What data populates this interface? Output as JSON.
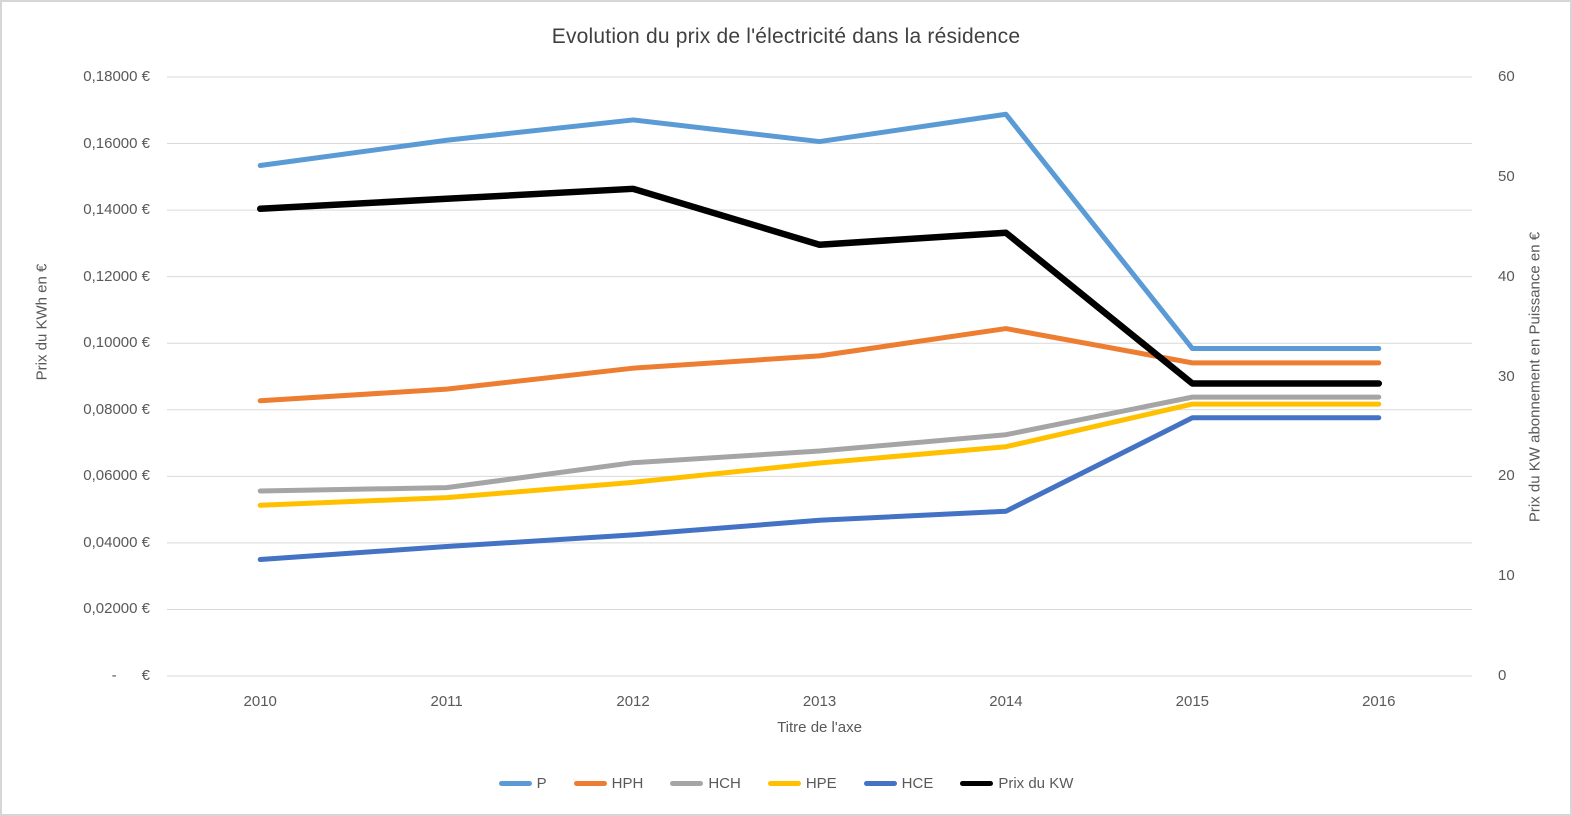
{
  "window": {
    "background": "#ffffff",
    "border_color": "#d6d6d6",
    "gridline_color": "#d9d9d9",
    "text_color": "#595959"
  },
  "chart_data": {
    "type": "line",
    "title": "Evolution du prix de l'électricité dans la résidence",
    "grid": true,
    "legend_position": "bottom",
    "x_axis": {
      "title": "Titre de l'axe",
      "categories": [
        "2010",
        "2011",
        "2012",
        "2013",
        "2014",
        "2015",
        "2016"
      ]
    },
    "left_axis": {
      "title": "Prix du KWh en €",
      "min": 0,
      "max": 0.18,
      "ticks": [
        {
          "value": 0.18,
          "label": "0,18000 €"
        },
        {
          "value": 0.16,
          "label": "0,16000 €"
        },
        {
          "value": 0.14,
          "label": "0,14000 €"
        },
        {
          "value": 0.12,
          "label": "0,12000 €"
        },
        {
          "value": 0.1,
          "label": "0,10000 €"
        },
        {
          "value": 0.08,
          "label": "0,08000 €"
        },
        {
          "value": 0.06,
          "label": "0,06000 €"
        },
        {
          "value": 0.04,
          "label": "0,04000 €"
        },
        {
          "value": 0.02,
          "label": "0,02000 €"
        },
        {
          "value": 0.0,
          "label": "-      €"
        }
      ]
    },
    "right_axis": {
      "title": "Prix du KW abonnement en Puissance en €",
      "min": 0,
      "max": 60,
      "ticks": [
        {
          "value": 60,
          "label": "60"
        },
        {
          "value": 50,
          "label": "50"
        },
        {
          "value": 40,
          "label": "40"
        },
        {
          "value": 30,
          "label": "30"
        },
        {
          "value": 20,
          "label": "20"
        },
        {
          "value": 10,
          "label": "10"
        },
        {
          "value": 0,
          "label": "0"
        }
      ]
    },
    "series": [
      {
        "name": "P",
        "axis": "left",
        "color": "#5B9BD5",
        "line_width": 5,
        "values": [
          0.1534,
          0.161,
          0.1671,
          0.1606,
          0.1688,
          0.0984,
          0.0984
        ]
      },
      {
        "name": "HPH",
        "axis": "left",
        "color": "#ED7D31",
        "line_width": 5,
        "values": [
          0.0827,
          0.0862,
          0.0925,
          0.0962,
          0.1044,
          0.0941,
          0.0941
        ]
      },
      {
        "name": "HCH",
        "axis": "left",
        "color": "#A5A5A5",
        "line_width": 5,
        "values": [
          0.0556,
          0.0566,
          0.0641,
          0.0676,
          0.0725,
          0.0838,
          0.0838
        ]
      },
      {
        "name": "HPE",
        "axis": "left",
        "color": "#FFC000",
        "line_width": 5,
        "values": [
          0.0513,
          0.0536,
          0.0582,
          0.064,
          0.0689,
          0.0817,
          0.0817
        ]
      },
      {
        "name": "HCE",
        "axis": "left",
        "color": "#4472C4",
        "line_width": 5,
        "values": [
          0.035,
          0.0389,
          0.0424,
          0.0468,
          0.0495,
          0.0776,
          0.0776
        ]
      },
      {
        "name": "Prix du KW",
        "axis": "right",
        "color": "#000000",
        "line_width": 6.5,
        "values": [
          46.8,
          47.8,
          48.8,
          43.2,
          44.4,
          29.3,
          29.3
        ]
      }
    ]
  }
}
